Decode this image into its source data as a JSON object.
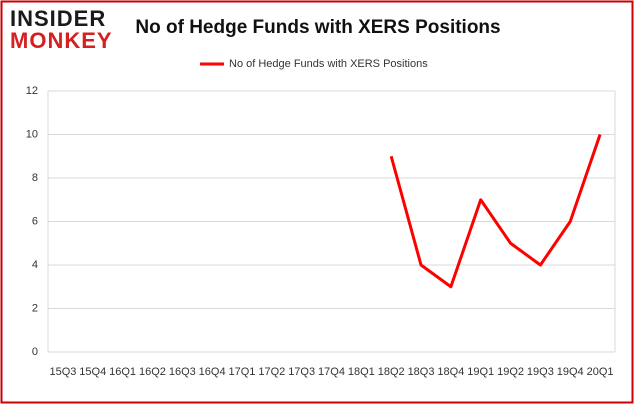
{
  "logo": {
    "line1": "INSIDER",
    "line2": "MONKEY"
  },
  "chart_data": {
    "type": "line",
    "title": "No of Hedge Funds with XERS Positions",
    "categories": [
      "15Q3",
      "15Q4",
      "16Q1",
      "16Q2",
      "16Q3",
      "16Q4",
      "17Q1",
      "17Q2",
      "17Q3",
      "17Q4",
      "18Q1",
      "18Q2",
      "18Q3",
      "18Q4",
      "19Q1",
      "19Q2",
      "19Q3",
      "19Q4",
      "20Q1"
    ],
    "series": [
      {
        "name": "No of Hedge Funds with XERS Positions",
        "color": "#ff0000",
        "values": [
          null,
          null,
          null,
          null,
          null,
          null,
          null,
          null,
          null,
          null,
          null,
          9,
          4,
          3,
          7,
          5,
          4,
          6,
          10
        ]
      }
    ],
    "ylim": [
      0,
      12
    ],
    "yticks": [
      0,
      2,
      4,
      6,
      8,
      10,
      12
    ],
    "grid": true,
    "legend": "top"
  }
}
